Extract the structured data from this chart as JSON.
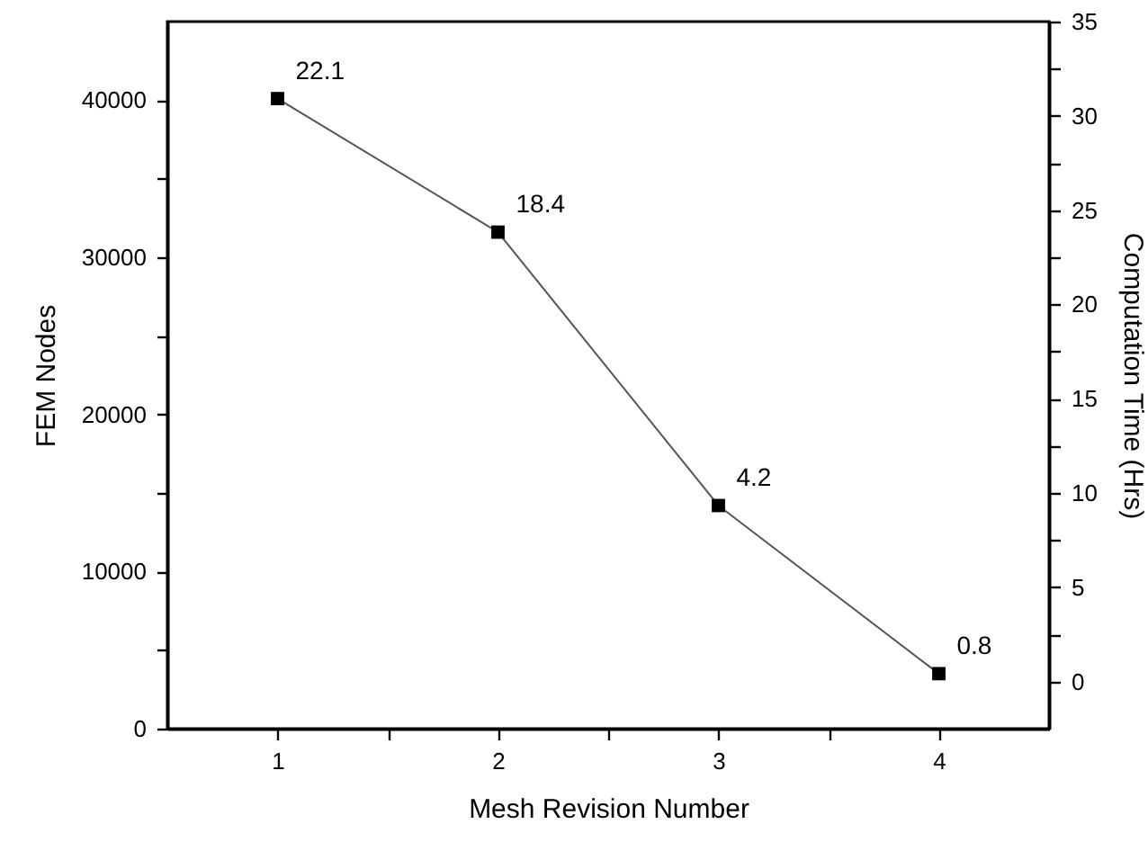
{
  "chart_data": {
    "type": "line",
    "xlabel": "Mesh Revision Number",
    "ylabel": "FEM Nodes",
    "y2label": "Computation Time (Hrs)",
    "x": [
      1,
      2,
      3,
      4
    ],
    "series": [
      {
        "color": "#000000",
        "values": [
          40100,
          31600,
          14200,
          3500
        ]
      }
    ],
    "marker": "square",
    "xlim": [
      0.5,
      4.5
    ],
    "xticks": [
      1,
      {
        "value": 1.5,
        "label": null
      },
      2,
      {
        "value": 2.5,
        "label": null
      },
      3,
      {
        "value": 3.5,
        "label": null
      },
      4
    ],
    "ylim": [
      0,
      45000
    ],
    "yticks": [
      0,
      {
        "value": 5000,
        "label": null
      },
      10000,
      {
        "value": 15000,
        "label": null
      },
      20000,
      {
        "value": 25000,
        "label": null
      },
      30000,
      {
        "value": 35000,
        "label": null
      },
      40000
    ],
    "y2lim": [
      -2.5,
      35
    ],
    "y2ticks": [
      0,
      {
        "value": 2.5,
        "label": null
      },
      5,
      {
        "value": 7.5,
        "label": null
      },
      10,
      {
        "value": 12.5,
        "label": null
      },
      15,
      {
        "value": 17.5,
        "label": null
      },
      20,
      {
        "value": 22.5,
        "label": null
      },
      25,
      {
        "value": 27.5,
        "label": null
      },
      30,
      {
        "value": 32.5,
        "label": null
      },
      35
    ],
    "annotations": [
      {
        "text": "22.1",
        "x": 1,
        "y": 40100
      },
      {
        "text": "18.4",
        "x": 2,
        "y": 31600
      },
      {
        "text": "4.2",
        "x": 3,
        "y": 14200
      },
      {
        "text": "0.8",
        "x": 4,
        "y": 3500
      }
    ]
  }
}
